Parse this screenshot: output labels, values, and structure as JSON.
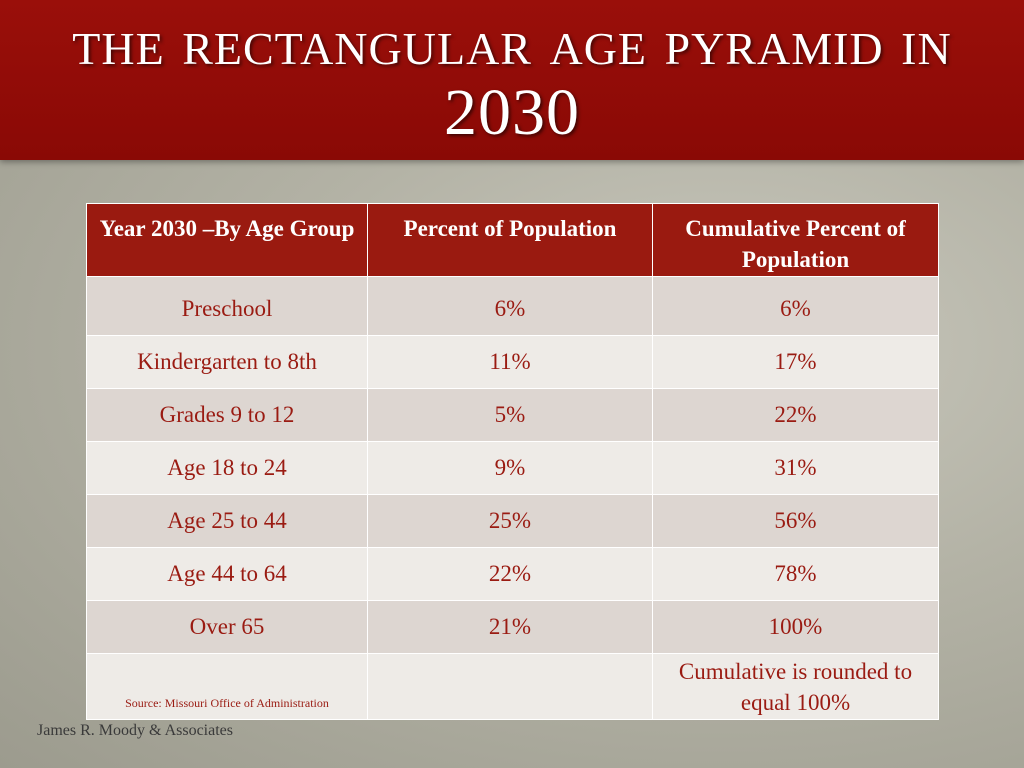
{
  "slide": {
    "title": "The Rectangular Age Pyramid in 2030",
    "credit": "James R. Moody & Associates"
  },
  "table": {
    "headers": [
      "Year 2030 –By Age Group",
      "Percent of Population",
      "Cumulative Percent of Population"
    ],
    "rows": [
      [
        "Preschool",
        "6%",
        "6%"
      ],
      [
        "Kindergarten to 8th",
        "11%",
        "17%"
      ],
      [
        "Grades 9 to 12",
        "5%",
        "22%"
      ],
      [
        "Age 18 to 24",
        "9%",
        "31%"
      ],
      [
        "Age 25 to 44",
        "25%",
        "56%"
      ],
      [
        "Age 44 to 64",
        "22%",
        "78%"
      ],
      [
        "Over 65",
        "21%",
        "100%"
      ]
    ],
    "source": "Source:  Missouri Office of Administration",
    "footer_note": "Cumulative is rounded to equal 100%"
  },
  "colors": {
    "title_band": "#8a0905",
    "header_bg": "#9a1a10",
    "row_odd": "#ddd6d1",
    "row_even": "#eeebe7",
    "text_accent": "#9a1b12"
  }
}
